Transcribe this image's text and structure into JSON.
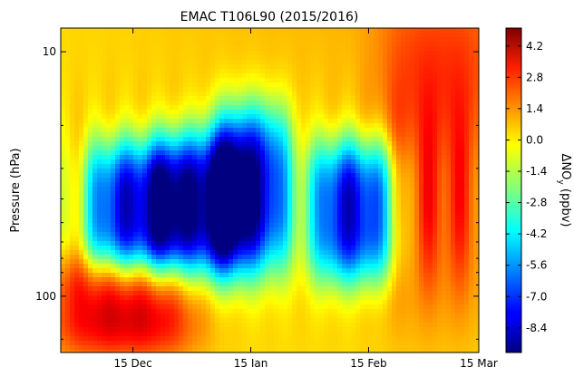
{
  "chart_data": {
    "type": "heatmap",
    "title": "EMAC T106L90 (2015/2016)",
    "ylabel": "Pressure (hPa)",
    "yscale": "log",
    "ylim": [
      170,
      8
    ],
    "xlim_days": [
      -36,
      74
    ],
    "x_ticks": [
      {
        "label": "15 Dec",
        "day": -17
      },
      {
        "label": "15 Jan",
        "day": 14
      },
      {
        "label": "15 Feb",
        "day": 45
      },
      {
        "label": "15 Mar",
        "day": 74
      }
    ],
    "y_ticks": [
      {
        "label": "10",
        "value": 10
      },
      {
        "label": "100",
        "value": 100
      }
    ],
    "colorbar": {
      "label": "ΔNO",
      "label_sub": "y",
      "label_unit": " (ppbv)",
      "range": [
        -9.5,
        5.0
      ],
      "ticks": [
        "4.2",
        "2.8",
        "1.4",
        "0.0",
        "-1.4",
        "-2.8",
        "-4.2",
        "-5.6",
        "-7.0",
        "-8.4"
      ],
      "tick_values": [
        4.2,
        2.8,
        1.4,
        0.0,
        -1.4,
        -2.8,
        -4.2,
        -5.6,
        -7.0,
        -8.4
      ],
      "colormap": "jet"
    },
    "features": [
      {
        "name": "denoxification core 1",
        "x": [
          -25,
          -10
        ],
        "p": [
          30,
          65
        ],
        "value": -8.0
      },
      {
        "name": "denoxification core 2",
        "x": [
          -7,
          7
        ],
        "p": [
          28,
          65
        ],
        "value": -8.4
      },
      {
        "name": "denoxification core 3",
        "x": [
          8,
          20
        ],
        "p": [
          22,
          62
        ],
        "value": -8.8
      },
      {
        "name": "denoxification core 4",
        "x": [
          34,
          48
        ],
        "p": [
          30,
          68
        ],
        "value": -8.2
      },
      {
        "name": "low-altitude enhancement",
        "x": [
          -34,
          -5
        ],
        "p": [
          85,
          140
        ],
        "value": 3.8
      },
      {
        "name": "late winter renoxification",
        "x": [
          52,
          74
        ],
        "p": [
          8,
          90
        ],
        "value": 2.5
      }
    ]
  }
}
